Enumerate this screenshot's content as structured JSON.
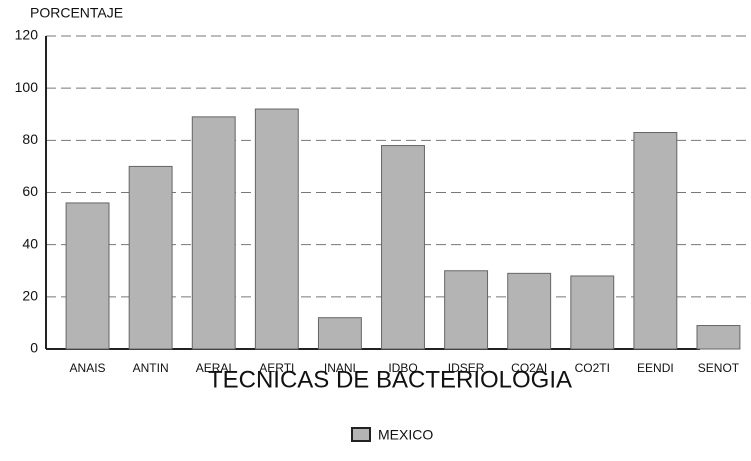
{
  "chart_data": {
    "type": "bar",
    "y_axis_label": "PORCENTAJE",
    "x_axis_label": "TECNICAS DE BACTERIOLOGIA",
    "categories": [
      "ANAIS",
      "ANTIN",
      "AERAI",
      "AERTI",
      "INANI",
      "IDBO",
      "IDSER",
      "CO2AI",
      "CO2TI",
      "EENDI",
      "SENOT"
    ],
    "series": [
      {
        "name": "MEXICO",
        "color": "#b4b4b4",
        "values": [
          56,
          70,
          89,
          92,
          12,
          78,
          30,
          29,
          28,
          83,
          9
        ]
      }
    ],
    "ylim": [
      0,
      120
    ],
    "yticks": [
      0,
      20,
      40,
      60,
      80,
      100,
      120
    ],
    "grid": true,
    "legend": "bottom"
  }
}
